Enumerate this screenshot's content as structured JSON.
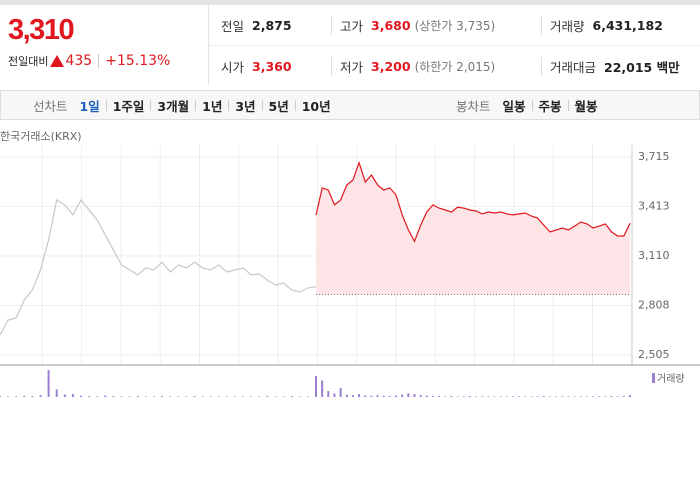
{
  "quote": {
    "price": "3,310",
    "change_label": "전일대비",
    "change": "435",
    "change_rate": "+15.13%"
  },
  "stats": [
    [
      {
        "label": "전일",
        "value": "2,875",
        "color": "#222222"
      },
      {
        "label": "고가",
        "value": "3,680",
        "note": "(상한가 3,735)",
        "color": "#e0171f"
      },
      {
        "label": "거래량",
        "value": "6,431,182",
        "color": "#222222"
      }
    ],
    [
      {
        "label": "시가",
        "value": "3,360",
        "color": "#e0171f"
      },
      {
        "label": "저가",
        "value": "3,200",
        "note": "(하한가 2,015)",
        "color": "#e0171f"
      },
      {
        "label": "거래대금",
        "value": "22,015 백만",
        "color": "#222222"
      }
    ]
  ],
  "tabs": {
    "line_chart": {
      "label": "선차트",
      "options": [
        "1일",
        "1주일",
        "3개월",
        "1년",
        "3년",
        "5년",
        "10년"
      ],
      "selected": 0
    },
    "candle_chart": {
      "label": "봉차트",
      "options": [
        "일봉",
        "주봉",
        "월봉"
      ]
    }
  },
  "chart_data": {
    "type": "line",
    "source": "한국거래소(KRX)",
    "ylim": [
      2505,
      3715
    ],
    "yticks": [
      {
        "value": 3715,
        "label": "3,715"
      },
      {
        "value": 3413,
        "label": "3,413"
      },
      {
        "value": 3110,
        "label": "3,110"
      },
      {
        "value": 2808,
        "label": "2,808"
      },
      {
        "value": 2505,
        "label": "2,505"
      }
    ],
    "grid": true,
    "baseline": 2875,
    "series": [
      {
        "color": "#c8c8c8",
        "values": [
          2627,
          2719,
          2731,
          2841,
          2902,
          3025,
          3208,
          3452,
          3422,
          3361,
          3452,
          3391,
          3330,
          3238,
          3147,
          3055,
          3025,
          2994,
          3037,
          3025,
          3073,
          3012,
          3055,
          3037,
          3073,
          3037,
          3025,
          3055,
          3012,
          3025,
          3037,
          2994,
          3000,
          2963,
          2933,
          2945,
          2902,
          2890,
          2915,
          2921
        ],
        "volumes": [
          3,
          2,
          2,
          4,
          3,
          6,
          90,
          25,
          8,
          10,
          4,
          3,
          2,
          5,
          3,
          2,
          2,
          3,
          2,
          2,
          3,
          2,
          2,
          2,
          3,
          2,
          2,
          2,
          2,
          2,
          2,
          2,
          2,
          3,
          2,
          2,
          3,
          2,
          2,
          4
        ]
      },
      {
        "color": "#e0171f",
        "fill": "#fde4e6",
        "values": [
          3360,
          3526,
          3513,
          3422,
          3452,
          3544,
          3574,
          3680,
          3562,
          3605,
          3544,
          3513,
          3526,
          3483,
          3361,
          3269,
          3200,
          3299,
          3379,
          3422,
          3403,
          3391,
          3379,
          3409,
          3403,
          3391,
          3385,
          3367,
          3379,
          3373,
          3379,
          3367,
          3361,
          3367,
          3373,
          3354,
          3342,
          3299,
          3257,
          3269,
          3281,
          3269,
          3293,
          3318,
          3306,
          3281,
          3293,
          3306,
          3257,
          3232,
          3232,
          3310
        ],
        "volumes": [
          70,
          55,
          20,
          12,
          30,
          8,
          6,
          10,
          5,
          4,
          6,
          4,
          3,
          5,
          8,
          12,
          10,
          6,
          4,
          3,
          3,
          2,
          3,
          2,
          2,
          3,
          2,
          2,
          2,
          2,
          2,
          2,
          2,
          2,
          2,
          2,
          2,
          3,
          2,
          2,
          2,
          2,
          2,
          2,
          2,
          2,
          2,
          2,
          3,
          2,
          3,
          6
        ]
      }
    ],
    "volume": {
      "name": "거래량",
      "color": "#9b7fd0",
      "vlim": [
        0,
        100
      ]
    }
  }
}
